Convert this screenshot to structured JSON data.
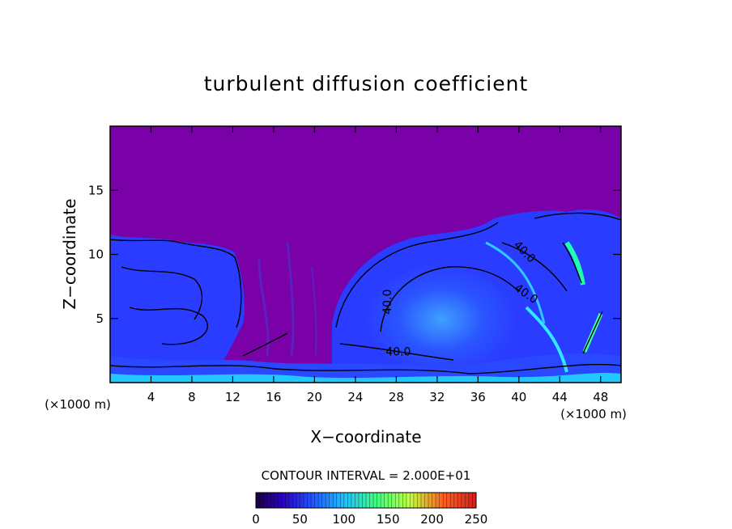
{
  "chart_data": {
    "type": "heatmap",
    "title": "turbulent diffusion coefficient",
    "xlabel": "X−coordinate",
    "ylabel": "Z−coordinate",
    "x_unit_left": "(×1000 m)",
    "x_unit_right": "(×1000 m)",
    "xlim": [
      0,
      50
    ],
    "ylim": [
      0,
      20
    ],
    "xticks": [
      4,
      8,
      12,
      16,
      20,
      24,
      28,
      32,
      36,
      40,
      44,
      48
    ],
    "yticks": [
      5,
      10,
      15
    ],
    "contour_interval_text": "CONTOUR INTERVAL = 2.000E+01",
    "contour_labels": [
      {
        "text": "40.0",
        "x": 27.5,
        "z": 6.3,
        "rotate": -90
      },
      {
        "text": "40.0",
        "x": 28.2,
        "z": 2.1,
        "rotate": 0
      },
      {
        "text": "40.0",
        "x": 40.5,
        "z": 6.7,
        "rotate": 35
      },
      {
        "text": "40.0",
        "x": 40.3,
        "z": 10.0,
        "rotate": 45
      }
    ],
    "colorbar": {
      "ticks": [
        0,
        50,
        100,
        150,
        200,
        250
      ],
      "range": [
        0,
        250
      ],
      "colors": [
        "#1a0040",
        "#2a00c0",
        "#2050ff",
        "#20c0ff",
        "#40ff80",
        "#c0ff40",
        "#ff6020",
        "#d02020"
      ]
    },
    "colors": {
      "background_field": "#7a00a8",
      "mid_field": "#2a3cff",
      "high_field": "#20e8ff"
    }
  }
}
